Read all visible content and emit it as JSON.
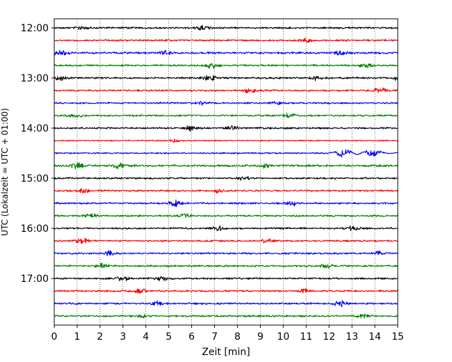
{
  "chart_data": {
    "type": "line",
    "title": "",
    "xlabel": "Zeit  [min]",
    "ylabel": "UTC (Lokalzeit = UTC + 01:00)",
    "xlim": [
      0,
      15
    ],
    "x_ticks": [
      "0",
      "1",
      "2",
      "3",
      "4",
      "5",
      "6",
      "7",
      "8",
      "9",
      "10",
      "11",
      "12",
      "13",
      "14",
      "15"
    ],
    "y_ticks": [
      {
        "label": "12:00",
        "row": 0
      },
      {
        "label": "13:00",
        "row": 4
      },
      {
        "label": "14:00",
        "row": 8
      },
      {
        "label": "15:00",
        "row": 12
      },
      {
        "label": "16:00",
        "row": 16
      },
      {
        "label": "17:00",
        "row": 20
      }
    ],
    "grid": "vertical-dotted",
    "legend": "none",
    "row_interval_minutes": 15,
    "colors": [
      "#000000",
      "#ff0000",
      "#0000ff",
      "#008000"
    ],
    "series": [
      {
        "start": "12:00",
        "color": "#000000",
        "amplitude": 1.0,
        "events": [
          [
            1.2,
            1.0
          ],
          [
            6.5,
            1.2
          ]
        ]
      },
      {
        "start": "12:15",
        "color": "#ff0000",
        "amplitude": 1.0,
        "events": [
          [
            11.0,
            1.0
          ]
        ]
      },
      {
        "start": "12:30",
        "color": "#0000ff",
        "amplitude": 1.2,
        "events": [
          [
            0.3,
            1.8
          ],
          [
            4.9,
            1.4
          ],
          [
            12.5,
            1.2
          ]
        ]
      },
      {
        "start": "12:45",
        "color": "#008000",
        "amplitude": 1.0,
        "events": [
          [
            6.9,
            1.8
          ],
          [
            13.6,
            1.2
          ]
        ]
      },
      {
        "start": "13:00",
        "color": "#000000",
        "amplitude": 1.0,
        "events": [
          [
            0.3,
            1.5
          ],
          [
            6.8,
            1.8
          ],
          [
            11.4,
            1.3
          ],
          [
            15.0,
            1.2
          ]
        ]
      },
      {
        "start": "13:15",
        "color": "#ff0000",
        "amplitude": 1.0,
        "events": [
          [
            8.5,
            1.5
          ],
          [
            14.2,
            1.6
          ]
        ]
      },
      {
        "start": "13:30",
        "color": "#0000ff",
        "amplitude": 0.9,
        "events": [
          [
            6.4,
            1.0
          ],
          [
            9.7,
            1.0
          ]
        ]
      },
      {
        "start": "13:45",
        "color": "#008000",
        "amplitude": 1.0,
        "events": [
          [
            1.0,
            1.0
          ],
          [
            10.3,
            1.1
          ]
        ]
      },
      {
        "start": "14:00",
        "color": "#000000",
        "amplitude": 1.0,
        "events": [
          [
            6.0,
            1.7
          ],
          [
            7.8,
            1.2
          ]
        ]
      },
      {
        "start": "14:15",
        "color": "#ff0000",
        "amplitude": 0.7,
        "events": [
          [
            5.3,
            1.0
          ]
        ]
      },
      {
        "start": "14:30",
        "color": "#0000ff",
        "amplitude": 0.8,
        "events": [
          [
            12.6,
            2.2
          ],
          [
            13.9,
            2.0
          ]
        ]
      },
      {
        "start": "14:45",
        "color": "#008000",
        "amplitude": 1.2,
        "events": [
          [
            1.0,
            1.6
          ],
          [
            2.8,
            1.3
          ],
          [
            9.2,
            1.2
          ]
        ]
      },
      {
        "start": "15:00",
        "color": "#000000",
        "amplitude": 1.0,
        "events": [
          [
            8.3,
            1.1
          ]
        ]
      },
      {
        "start": "15:15",
        "color": "#ff0000",
        "amplitude": 1.0,
        "events": [
          [
            1.3,
            1.1
          ],
          [
            7.2,
            1.1
          ]
        ]
      },
      {
        "start": "15:30",
        "color": "#0000ff",
        "amplitude": 1.0,
        "events": [
          [
            5.3,
            1.8
          ],
          [
            10.4,
            1.6
          ]
        ]
      },
      {
        "start": "15:45",
        "color": "#008000",
        "amplitude": 1.0,
        "events": [
          [
            1.6,
            1.2
          ],
          [
            5.7,
            1.1
          ]
        ]
      },
      {
        "start": "16:00",
        "color": "#000000",
        "amplitude": 1.0,
        "events": [
          [
            7.2,
            1.2
          ],
          [
            13.0,
            1.3
          ]
        ]
      },
      {
        "start": "16:15",
        "color": "#ff0000",
        "amplitude": 1.0,
        "events": [
          [
            1.2,
            1.6
          ],
          [
            9.3,
            1.1
          ]
        ]
      },
      {
        "start": "16:30",
        "color": "#0000ff",
        "amplitude": 1.0,
        "events": [
          [
            2.4,
            1.6
          ],
          [
            14.2,
            1.2
          ]
        ]
      },
      {
        "start": "16:45",
        "color": "#008000",
        "amplitude": 1.0,
        "events": [
          [
            2.1,
            1.4
          ],
          [
            11.9,
            1.2
          ]
        ]
      },
      {
        "start": "17:00",
        "color": "#000000",
        "amplitude": 1.0,
        "events": [
          [
            3.0,
            1.5
          ],
          [
            4.7,
            1.2
          ]
        ]
      },
      {
        "start": "17:15",
        "color": "#ff0000",
        "amplitude": 1.0,
        "events": [
          [
            3.8,
            1.4
          ],
          [
            10.9,
            1.3
          ]
        ]
      },
      {
        "start": "17:30",
        "color": "#0000ff",
        "amplitude": 1.0,
        "events": [
          [
            12.5,
            1.9
          ],
          [
            4.5,
            1.1
          ]
        ]
      },
      {
        "start": "17:45",
        "color": "#008000",
        "amplitude": 1.0,
        "events": [
          [
            3.8,
            1.1
          ],
          [
            13.5,
            1.1
          ]
        ]
      }
    ]
  }
}
